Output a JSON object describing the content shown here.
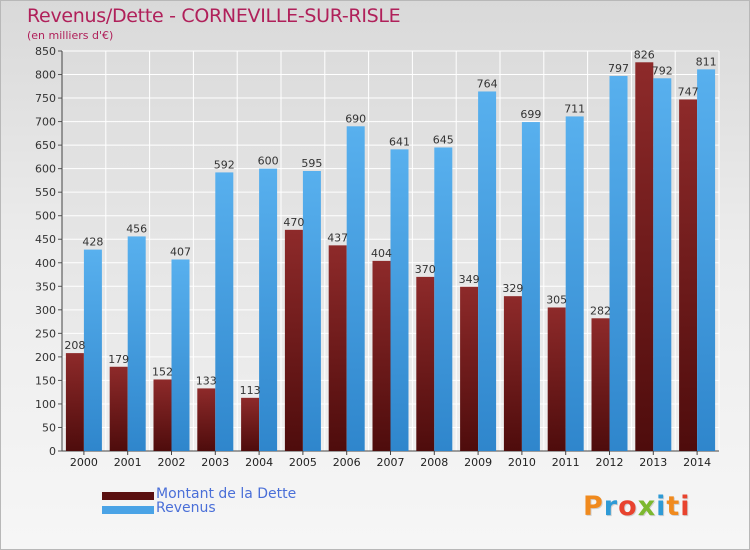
{
  "header": {
    "title": "Revenus/Dette - CORNEVILLE-SUR-RISLE",
    "subtitle": "(en milliers d'€)"
  },
  "chart_data": {
    "type": "bar",
    "categories": [
      "2000",
      "2001",
      "2002",
      "2003",
      "2004",
      "2005",
      "2006",
      "2007",
      "2008",
      "2009",
      "2010",
      "2011",
      "2012",
      "2013",
      "2014"
    ],
    "series": [
      {
        "name": "Montant de la Dette",
        "color": "#7b1c1c",
        "values": [
          208,
          179,
          152,
          133,
          113,
          470,
          437,
          404,
          370,
          349,
          329,
          305,
          282,
          826,
          747
        ]
      },
      {
        "name": "Revenus",
        "color": "#4aa3e6",
        "values": [
          428,
          456,
          407,
          592,
          600,
          595,
          690,
          641,
          645,
          764,
          699,
          711,
          797,
          792,
          811
        ]
      }
    ],
    "ylim": [
      0,
      850
    ],
    "yticks": [
      0,
      50,
      100,
      150,
      200,
      250,
      300,
      350,
      400,
      450,
      500,
      550,
      600,
      650,
      700,
      750,
      800,
      850
    ],
    "grid": true,
    "legend": "bottom-left"
  },
  "legend": {
    "items": [
      {
        "label": "Montant de la Dette",
        "color": "#5a1010"
      },
      {
        "label": "Revenus",
        "color": "#4aa3e6"
      }
    ]
  },
  "logo": {
    "text": "Proxiti",
    "letter_colors": [
      "#f08a1e",
      "#2e9ad6",
      "#e8432e",
      "#7cb82f",
      "#2e9ad6",
      "#f08a1e",
      "#e8432e"
    ]
  }
}
